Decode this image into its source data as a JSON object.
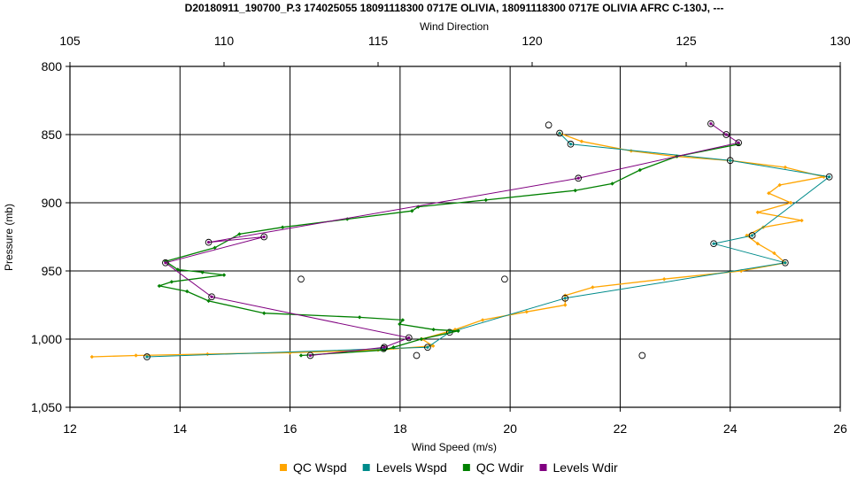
{
  "chart_data": {
    "type": "line",
    "title": "D20180911_190700_P.3 174025055 18091118300 0717E OLIVIA, 18091118300 0717E OLIVIA AFRC C-130J, ---",
    "top_axis_label": "Wind Direction",
    "xlabel": "Wind Speed (m/s)",
    "ylabel": "Pressure (mb)",
    "x_range": [
      12,
      26
    ],
    "x_ticks": [
      12,
      14,
      16,
      18,
      20,
      22,
      24,
      26
    ],
    "top_range": [
      105,
      130
    ],
    "top_ticks": [
      105,
      110,
      115,
      120,
      125,
      130
    ],
    "y_range": [
      800,
      1050
    ],
    "y_inverted": true,
    "y_ticks": [
      800,
      850,
      900,
      950,
      1000,
      1050
    ],
    "y_tick_labels": [
      "800",
      "850",
      "900",
      "950",
      "1,000",
      "1,050"
    ],
    "grid": true,
    "legend_position": "bottom",
    "colors": {
      "qc_wspd": "#FFA500",
      "levels_wspd": "#008B8B",
      "qc_wdir": "#008000",
      "levels_wdir": "#800080"
    },
    "series": [
      {
        "name": "QC Wspd",
        "axis": "bottom",
        "marker": "diamond",
        "points": [
          [
            20.9,
            849
          ],
          [
            21.3,
            855
          ],
          [
            22.2,
            862
          ],
          [
            23.0,
            866
          ],
          [
            24.0,
            869
          ],
          [
            25.0,
            874
          ],
          [
            25.7,
            881
          ],
          [
            24.9,
            887
          ],
          [
            24.7,
            893
          ],
          [
            25.1,
            900
          ],
          [
            24.5,
            907
          ],
          [
            25.3,
            913
          ],
          [
            24.6,
            918
          ],
          [
            24.3,
            924
          ],
          [
            24.5,
            930
          ],
          [
            24.8,
            937
          ],
          [
            25.0,
            944
          ],
          [
            24.2,
            950
          ],
          [
            22.8,
            956
          ],
          [
            21.5,
            962
          ],
          [
            21.0,
            968
          ],
          [
            21.0,
            975
          ],
          [
            20.3,
            980
          ],
          [
            19.5,
            986
          ],
          [
            19.0,
            993
          ],
          [
            18.4,
            1000
          ],
          [
            18.6,
            1005
          ],
          [
            17.6,
            1008
          ],
          [
            16.0,
            1010
          ],
          [
            14.5,
            1011
          ],
          [
            13.2,
            1012
          ],
          [
            12.4,
            1013
          ]
        ]
      },
      {
        "name": "Levels Wspd",
        "axis": "bottom",
        "marker": "triangle",
        "points": [
          [
            20.9,
            849
          ],
          [
            21.1,
            857
          ],
          [
            24.0,
            869
          ],
          [
            25.8,
            881
          ],
          [
            24.4,
            924
          ],
          [
            23.7,
            930
          ],
          [
            25.0,
            944
          ],
          [
            21.0,
            970
          ],
          [
            18.9,
            995
          ],
          [
            18.5,
            1006
          ],
          [
            17.7,
            1007
          ],
          [
            13.4,
            1013
          ]
        ]
      },
      {
        "name": "QC Wdir",
        "axis": "top",
        "marker": "diamond",
        "points": [
          [
            126.7,
            857
          ],
          [
            124.7,
            866
          ],
          [
            123.5,
            876
          ],
          [
            122.6,
            886
          ],
          [
            121.4,
            891
          ],
          [
            118.5,
            898
          ],
          [
            116.3,
            903
          ],
          [
            116.1,
            906
          ],
          [
            114.0,
            912
          ],
          [
            111.9,
            918
          ],
          [
            110.5,
            923
          ],
          [
            109.7,
            933
          ],
          [
            108.1,
            943
          ],
          [
            108.5,
            949
          ],
          [
            109.3,
            951
          ],
          [
            110.0,
            953
          ],
          [
            108.3,
            958
          ],
          [
            107.9,
            961
          ],
          [
            108.8,
            965
          ],
          [
            109.5,
            972
          ],
          [
            111.3,
            981
          ],
          [
            114.4,
            984
          ],
          [
            115.8,
            986
          ],
          [
            115.7,
            989
          ],
          [
            116.8,
            993
          ],
          [
            117.6,
            994
          ],
          [
            116.4,
            1000
          ],
          [
            115.5,
            1006
          ],
          [
            115.2,
            1008
          ],
          [
            112.5,
            1012
          ]
        ]
      },
      {
        "name": "Levels Wdir",
        "axis": "top",
        "marker": "triangle",
        "points": [
          [
            125.8,
            842
          ],
          [
            126.3,
            850
          ],
          [
            126.7,
            856
          ],
          [
            121.5,
            882
          ],
          [
            109.5,
            929
          ],
          [
            111.3,
            925
          ],
          [
            108.1,
            944
          ],
          [
            109.6,
            969
          ],
          [
            116.0,
            999
          ],
          [
            115.2,
            1006
          ],
          [
            112.8,
            1012
          ]
        ]
      }
    ],
    "extra_points": [
      [
        16.2,
        956
      ],
      [
        19.9,
        956
      ],
      [
        22.4,
        1012
      ],
      [
        18.3,
        1012
      ],
      [
        20.7,
        843
      ]
    ],
    "legend": [
      "QC Wspd",
      "Levels Wspd",
      "QC Wdir",
      "Levels Wdir"
    ]
  }
}
